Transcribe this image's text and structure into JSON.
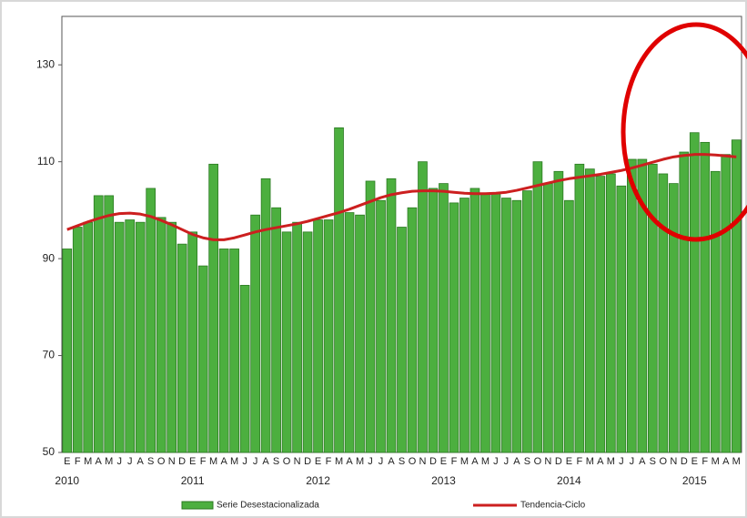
{
  "chart_data": {
    "type": "bar",
    "categories": [
      "E",
      "F",
      "M",
      "A",
      "M",
      "J",
      "J",
      "A",
      "S",
      "O",
      "N",
      "D",
      "E",
      "F",
      "M",
      "A",
      "M",
      "J",
      "J",
      "A",
      "S",
      "O",
      "N",
      "D",
      "E",
      "F",
      "M",
      "A",
      "M",
      "J",
      "J",
      "A",
      "S",
      "O",
      "N",
      "D",
      "E",
      "F",
      "M",
      "A",
      "M",
      "J",
      "J",
      "A",
      "S",
      "O",
      "N",
      "D",
      "E",
      "F",
      "M",
      "A",
      "M",
      "J",
      "J",
      "A",
      "S",
      "O",
      "N",
      "D",
      "E",
      "F",
      "M",
      "A",
      "M"
    ],
    "years": [
      "2010",
      "2011",
      "2012",
      "2013",
      "2014",
      "2015"
    ],
    "series": [
      {
        "name": "Serie Desestacionalizada",
        "type": "bar",
        "color": "#4caf3f",
        "values": [
          92,
          96.5,
          97.5,
          103,
          103,
          97.5,
          98,
          97.5,
          104.5,
          98.5,
          97.5,
          93,
          95.5,
          88.5,
          109.5,
          92,
          92,
          84.5,
          99,
          106.5,
          100.5,
          95.5,
          97.5,
          95.5,
          98,
          98,
          117,
          99.5,
          99,
          106,
          102,
          106.5,
          96.5,
          100.5,
          110,
          104.5,
          105.5,
          101.5,
          102.5,
          104.5,
          103.5,
          103.5,
          102.5,
          102,
          104,
          110,
          105.5,
          108,
          102,
          109.5,
          108.5,
          107,
          107.5,
          105,
          110.5,
          110.5,
          109.5,
          107.5,
          105.5,
          112,
          116,
          114,
          108,
          111.5,
          114.5
        ]
      },
      {
        "name": "Tendencia-Ciclo",
        "type": "line",
        "color": "#cc1f1f",
        "values": [
          96,
          96.8,
          97.6,
          98.3,
          98.9,
          99.3,
          99.4,
          99.2,
          98.7,
          97.9,
          97,
          96,
          95,
          94.3,
          93.9,
          93.9,
          94.3,
          94.9,
          95.5,
          96,
          96.4,
          96.8,
          97.2,
          97.7,
          98.3,
          98.9,
          99.5,
          100.2,
          101,
          101.8,
          102.6,
          103.2,
          103.6,
          103.9,
          104,
          104,
          103.9,
          103.7,
          103.5,
          103.4,
          103.4,
          103.5,
          103.7,
          104.1,
          104.6,
          105.1,
          105.6,
          106.1,
          106.5,
          106.8,
          107.1,
          107.4,
          107.8,
          108.2,
          108.7,
          109.3,
          109.9,
          110.5,
          111,
          111.3,
          111.5,
          111.5,
          111.4,
          111.2,
          111
        ]
      }
    ],
    "ylim": [
      50,
      140
    ],
    "yticks": [
      50,
      70,
      90,
      110,
      130
    ],
    "grid": false
  }
}
